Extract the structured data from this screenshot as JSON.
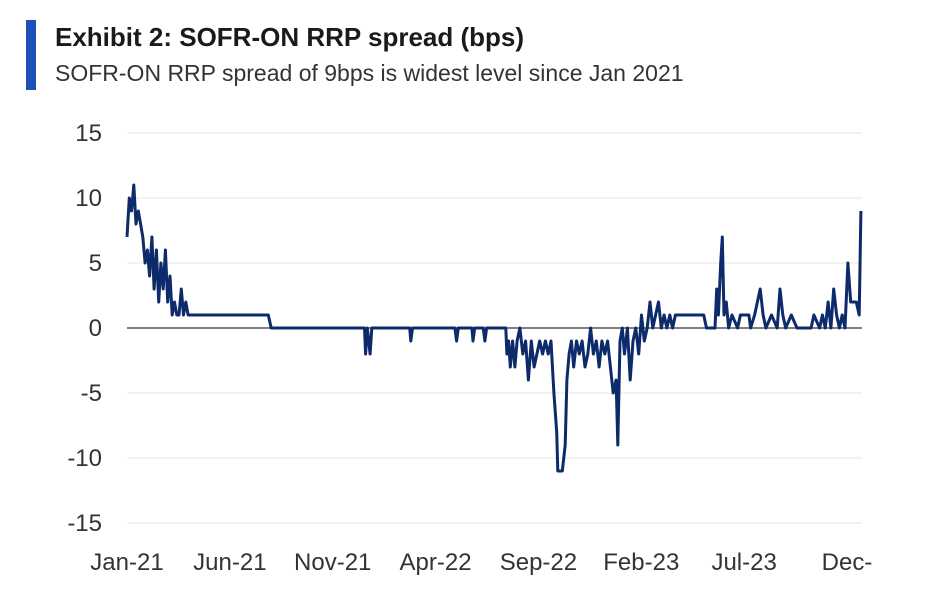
{
  "chart_data": {
    "type": "line",
    "title": "Exhibit 2: SOFR-ON RRP spread (bps)",
    "subtitle": "SOFR-ON RRP spread of 9bps is widest level since Jan 2021",
    "xlabel": "",
    "ylabel": "",
    "ylim": [
      -15,
      15
    ],
    "yticks": [
      15,
      10,
      5,
      0,
      -5,
      -10,
      -15
    ],
    "xticks": [
      "Jan-21",
      "Jun-21",
      "Nov-21",
      "Apr-22",
      "Sep-22",
      "Feb-23",
      "Jul-23",
      "Dec-"
    ],
    "grid": true,
    "legend": "none",
    "series": [
      {
        "values": [
          [
            0.0,
            7
          ],
          [
            0.04,
            10
          ],
          [
            0.08,
            9
          ],
          [
            0.12,
            11
          ],
          [
            0.16,
            8
          ],
          [
            0.2,
            9
          ],
          [
            0.24,
            8
          ],
          [
            0.28,
            7
          ],
          [
            0.32,
            5
          ],
          [
            0.36,
            6
          ],
          [
            0.4,
            4
          ],
          [
            0.44,
            7
          ],
          [
            0.48,
            3
          ],
          [
            0.52,
            6
          ],
          [
            0.56,
            2
          ],
          [
            0.6,
            5
          ],
          [
            0.64,
            3
          ],
          [
            0.68,
            6
          ],
          [
            0.72,
            2
          ],
          [
            0.76,
            4
          ],
          [
            0.8,
            1
          ],
          [
            0.84,
            2
          ],
          [
            0.88,
            1
          ],
          [
            0.92,
            1
          ],
          [
            0.96,
            3
          ],
          [
            1.0,
            1
          ],
          [
            1.04,
            2
          ],
          [
            1.08,
            1
          ],
          [
            1.15,
            1
          ],
          [
            2.5,
            1
          ],
          [
            2.55,
            0
          ],
          [
            4.2,
            0
          ],
          [
            4.22,
            -2
          ],
          [
            4.25,
            0
          ],
          [
            4.3,
            -2
          ],
          [
            4.33,
            0
          ],
          [
            5.0,
            0
          ],
          [
            5.02,
            -1
          ],
          [
            5.05,
            0
          ],
          [
            5.8,
            0
          ],
          [
            5.83,
            -1
          ],
          [
            5.86,
            0
          ],
          [
            6.1,
            0
          ],
          [
            6.12,
            -1
          ],
          [
            6.15,
            0
          ],
          [
            6.3,
            0
          ],
          [
            6.33,
            -1
          ],
          [
            6.36,
            0
          ],
          [
            6.7,
            0
          ],
          [
            6.72,
            -2
          ],
          [
            6.75,
            -1
          ],
          [
            6.78,
            -3
          ],
          [
            6.82,
            -1
          ],
          [
            6.86,
            -3
          ],
          [
            6.9,
            -1
          ],
          [
            6.95,
            0
          ],
          [
            7.0,
            -2
          ],
          [
            7.05,
            -1
          ],
          [
            7.1,
            -4
          ],
          [
            7.15,
            -1
          ],
          [
            7.2,
            -3
          ],
          [
            7.25,
            -2
          ],
          [
            7.3,
            -1
          ],
          [
            7.35,
            -2
          ],
          [
            7.4,
            -1
          ],
          [
            7.45,
            -2
          ],
          [
            7.5,
            -1
          ],
          [
            7.55,
            -5
          ],
          [
            7.6,
            -8
          ],
          [
            7.62,
            -11
          ],
          [
            7.7,
            -11
          ],
          [
            7.75,
            -9
          ],
          [
            7.78,
            -4
          ],
          [
            7.82,
            -2
          ],
          [
            7.86,
            -1
          ],
          [
            7.9,
            -3
          ],
          [
            7.95,
            -1
          ],
          [
            8.0,
            -2
          ],
          [
            8.05,
            -1
          ],
          [
            8.1,
            -3
          ],
          [
            8.15,
            -2
          ],
          [
            8.2,
            0
          ],
          [
            8.25,
            -2
          ],
          [
            8.3,
            -1
          ],
          [
            8.35,
            -3
          ],
          [
            8.4,
            -1
          ],
          [
            8.45,
            -2
          ],
          [
            8.5,
            -1
          ],
          [
            8.55,
            -3
          ],
          [
            8.6,
            -5
          ],
          [
            8.65,
            -4
          ],
          [
            8.68,
            -9
          ],
          [
            8.72,
            -1
          ],
          [
            8.76,
            0
          ],
          [
            8.8,
            -2
          ],
          [
            8.85,
            0
          ],
          [
            8.9,
            -4
          ],
          [
            8.95,
            -1
          ],
          [
            9.0,
            0
          ],
          [
            9.05,
            -2
          ],
          [
            9.1,
            1
          ],
          [
            9.15,
            -1
          ],
          [
            9.2,
            0
          ],
          [
            9.25,
            2
          ],
          [
            9.3,
            0
          ],
          [
            9.35,
            1
          ],
          [
            9.4,
            2
          ],
          [
            9.45,
            0
          ],
          [
            9.5,
            1
          ],
          [
            9.55,
            0
          ],
          [
            9.6,
            1
          ],
          [
            9.65,
            0
          ],
          [
            9.7,
            1
          ],
          [
            10.2,
            1
          ],
          [
            10.25,
            0
          ],
          [
            10.4,
            0
          ],
          [
            10.43,
            3
          ],
          [
            10.46,
            1
          ],
          [
            10.5,
            5
          ],
          [
            10.53,
            7
          ],
          [
            10.56,
            1
          ],
          [
            10.6,
            2
          ],
          [
            10.64,
            0
          ],
          [
            10.7,
            1
          ],
          [
            10.8,
            0
          ],
          [
            10.85,
            1
          ],
          [
            11.0,
            1
          ],
          [
            11.03,
            0
          ],
          [
            11.1,
            1
          ],
          [
            11.2,
            3
          ],
          [
            11.25,
            1
          ],
          [
            11.3,
            0
          ],
          [
            11.4,
            1
          ],
          [
            11.5,
            0
          ],
          [
            11.55,
            3
          ],
          [
            11.6,
            1
          ],
          [
            11.65,
            0
          ],
          [
            11.75,
            1
          ],
          [
            11.85,
            0
          ],
          [
            12.1,
            0
          ],
          [
            12.15,
            1
          ],
          [
            12.25,
            0
          ],
          [
            12.3,
            1
          ],
          [
            12.35,
            0
          ],
          [
            12.4,
            2
          ],
          [
            12.45,
            0
          ],
          [
            12.5,
            3
          ],
          [
            12.55,
            1
          ],
          [
            12.6,
            0
          ],
          [
            12.65,
            1
          ],
          [
            12.7,
            0
          ],
          [
            12.75,
            5
          ],
          [
            12.8,
            2
          ],
          [
            12.9,
            2
          ],
          [
            12.95,
            1
          ],
          [
            12.98,
            9
          ]
        ]
      }
    ],
    "x_range": [
      0,
      13
    ],
    "line_color": "#0d2b6b",
    "zero_line_color": "#555555",
    "grid_color": "#e6e6e6"
  },
  "colors": {
    "accent_bar": "#1f4fb8"
  }
}
